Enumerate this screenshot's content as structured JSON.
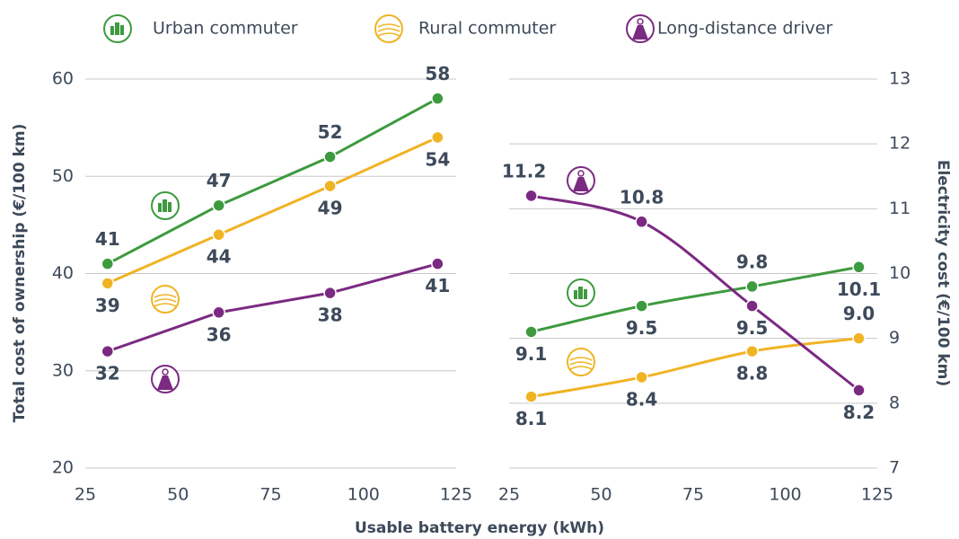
{
  "chart_data": [
    {
      "type": "line",
      "xlabel": "Usable battery energy (kWh)",
      "ylabel": "Total cost of ownership (€/100 km)",
      "xlim": [
        25,
        125
      ],
      "xticks": [
        25,
        50,
        75,
        100,
        125
      ],
      "ylim": [
        20,
        60
      ],
      "yticks": [
        20,
        30,
        40,
        50,
        60
      ],
      "grid": true,
      "x": [
        31,
        61,
        91,
        120
      ],
      "series": [
        {
          "name": "Urban commuter",
          "color": "#3d9a3f",
          "values": [
            41,
            47,
            52,
            58
          ]
        },
        {
          "name": "Rural commuter",
          "color": "#f0b323",
          "values": [
            39,
            44,
            49,
            54
          ]
        },
        {
          "name": "Long-distance driver",
          "color": "#7b2a82",
          "values": [
            32,
            36,
            38,
            41
          ]
        }
      ]
    },
    {
      "type": "line",
      "y2label": "Electricity cost (€/100 km)",
      "xlim": [
        25,
        125
      ],
      "xticks": [
        25,
        50,
        75,
        100,
        125
      ],
      "y2lim": [
        7,
        13
      ],
      "y2ticks": [
        7,
        8,
        9,
        10,
        11,
        12,
        13
      ],
      "grid": true,
      "x": [
        31,
        61,
        91,
        120
      ],
      "series": [
        {
          "name": "Urban commuter",
          "color": "#3d9a3f",
          "axis": "y2",
          "values": [
            9.1,
            9.5,
            9.8,
            10.1
          ],
          "value_labels": [
            "9.1",
            "9.5",
            "9.8",
            "10.1"
          ]
        },
        {
          "name": "Rural commuter",
          "color": "#f0b323",
          "axis": "y2",
          "values": [
            8.1,
            8.4,
            8.8,
            9.0
          ],
          "value_labels": [
            "8.1",
            "8.4",
            "8.8",
            "9.0"
          ]
        },
        {
          "name": "Long-distance driver",
          "color": "#7b2a82",
          "axis": "y2",
          "values": [
            11.2,
            10.8,
            9.5,
            8.2
          ],
          "value_labels": [
            "11.2",
            "10.8",
            "9.5",
            "8.2"
          ]
        }
      ]
    }
  ]
}
